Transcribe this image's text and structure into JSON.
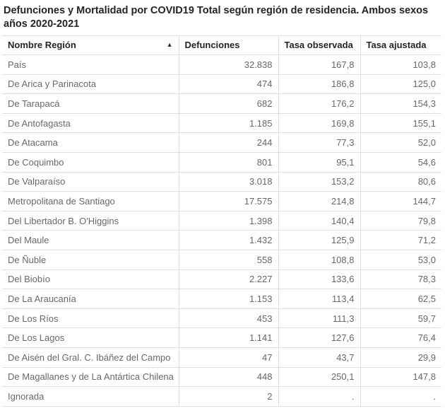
{
  "title": "Defunciones y Mortalidad por COVID19 Total según región de residencia. Ambos sexos años 2020-2021",
  "colors": {
    "background": "#ffffff",
    "title_text": "#21242b",
    "header_text": "#21242b",
    "body_text": "#65696d",
    "border": "#dfdfdf",
    "sort_icon": "#2b2e33"
  },
  "sort": {
    "column": "Nombre Región",
    "direction": "ascending",
    "icon": "▲"
  },
  "chart_data": {
    "type": "table",
    "title": "Defunciones y Mortalidad por COVID19 Total según región de residencia. Ambos sexos años 2020-2021",
    "columns": [
      "Nombre Región",
      "Defunciones",
      "Tasa observada",
      "Tasa ajustada"
    ],
    "column_alignment": [
      "left",
      "right",
      "right",
      "right"
    ],
    "rows": [
      {
        "region": "País",
        "defunciones": "32.838",
        "tasa_observada": "167,8",
        "tasa_ajustada": "103,8"
      },
      {
        "region": "De Arica y Parinacota",
        "defunciones": "474",
        "tasa_observada": "186,8",
        "tasa_ajustada": "125,0"
      },
      {
        "region": "De Tarapacá",
        "defunciones": "682",
        "tasa_observada": "176,2",
        "tasa_ajustada": "154,3"
      },
      {
        "region": "De Antofagasta",
        "defunciones": "1.185",
        "tasa_observada": "169,8",
        "tasa_ajustada": "155,1"
      },
      {
        "region": "De Atacama",
        "defunciones": "244",
        "tasa_observada": "77,3",
        "tasa_ajustada": "52,0"
      },
      {
        "region": "De Coquimbo",
        "defunciones": "801",
        "tasa_observada": "95,1",
        "tasa_ajustada": "54,6"
      },
      {
        "region": "De Valparaíso",
        "defunciones": "3.018",
        "tasa_observada": "153,2",
        "tasa_ajustada": "80,6"
      },
      {
        "region": "Metropolitana de Santiago",
        "defunciones": "17.575",
        "tasa_observada": "214,8",
        "tasa_ajustada": "144,7"
      },
      {
        "region": "Del Libertador B. O'Higgins",
        "defunciones": "1.398",
        "tasa_observada": "140,4",
        "tasa_ajustada": "79,8"
      },
      {
        "region": "Del Maule",
        "defunciones": "1.432",
        "tasa_observada": "125,9",
        "tasa_ajustada": "71,2"
      },
      {
        "region": "De Ñuble",
        "defunciones": "558",
        "tasa_observada": "108,8",
        "tasa_ajustada": "53,0"
      },
      {
        "region": "Del Biobío",
        "defunciones": "2.227",
        "tasa_observada": "133,6",
        "tasa_ajustada": "78,3"
      },
      {
        "region": "De La Araucanía",
        "defunciones": "1.153",
        "tasa_observada": "113,4",
        "tasa_ajustada": "62,5"
      },
      {
        "region": "De Los Ríos",
        "defunciones": "453",
        "tasa_observada": "111,3",
        "tasa_ajustada": "59,7"
      },
      {
        "region": "De Los Lagos",
        "defunciones": "1.141",
        "tasa_observada": "127,6",
        "tasa_ajustada": "76,4"
      },
      {
        "region": "De Aisén del Gral. C. Ibáñez del Campo",
        "defunciones": "47",
        "tasa_observada": "43,7",
        "tasa_ajustada": "29,9"
      },
      {
        "region": "De Magallanes y de La Antártica Chilena",
        "defunciones": "448",
        "tasa_observada": "250,1",
        "tasa_ajustada": "147,8"
      },
      {
        "region": "Ignorada",
        "defunciones": "2",
        "tasa_observada": ".",
        "tasa_ajustada": "."
      }
    ]
  }
}
